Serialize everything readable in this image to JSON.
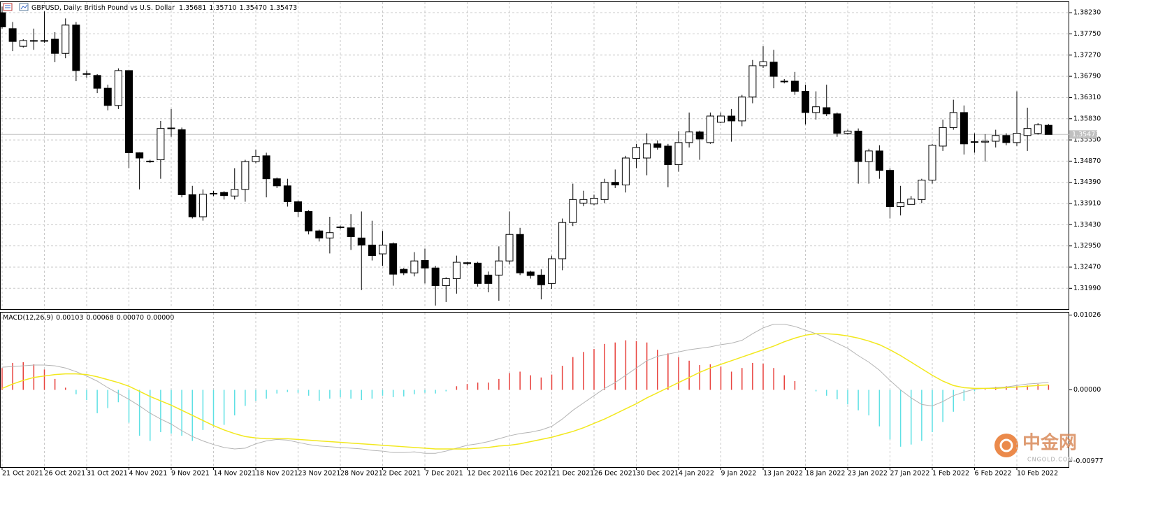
{
  "chart_data": [
    {
      "type": "candlestick",
      "title": "GBPUSD, Daily:  British Pound vs U.S. Dollar",
      "header_values": [
        "1.35681",
        "1.35710",
        "1.35470",
        "1.35473"
      ],
      "categories": [
        "21 Oct 2021",
        null,
        null,
        null,
        "26 Oct 2021",
        null,
        null,
        null,
        "31 Oct 2021",
        null,
        null,
        null,
        "4 Nov 2021",
        null,
        null,
        null,
        "9 Nov 2021",
        null,
        null,
        null,
        "14 Nov 2021",
        null,
        null,
        null,
        "18 Nov 2021",
        null,
        null,
        null,
        "23 Nov 2021",
        null,
        null,
        null,
        "28 Nov 2021",
        null,
        null,
        null,
        "2 Dec 2021",
        null,
        null,
        null,
        "7 Dec 2021",
        null,
        null,
        null,
        "12 Dec 2021",
        null,
        null,
        null,
        "16 Dec 2021",
        null,
        null,
        null,
        "21 Dec 2021",
        null,
        null,
        null,
        "26 Dec 2021",
        null,
        null,
        null,
        "30 Dec 2021",
        null,
        null,
        null,
        "4 Jan 2022",
        null,
        null,
        null,
        "9 Jan 2022",
        null,
        null,
        null,
        "13 Jan 2022",
        null,
        null,
        null,
        "18 Jan 2022",
        null,
        null,
        null,
        "23 Jan 2022",
        null,
        null,
        null,
        "27 Jan 2022",
        null,
        null,
        null,
        "1 Feb 2022",
        null,
        null,
        null,
        "6 Feb 2022",
        null,
        null,
        null,
        "10 Feb 2022",
        null,
        null,
        null
      ],
      "open": [
        1.3823,
        1.3787,
        1.3747,
        1.376,
        1.376,
        1.3763,
        1.3731,
        1.3795,
        1.3685,
        1.3681,
        1.3652,
        1.3613,
        1.3692,
        1.3506,
        1.3486,
        1.349,
        1.3561,
        1.3558,
        1.3411,
        1.3361,
        1.3413,
        1.3416,
        1.3408,
        1.3423,
        1.3486,
        1.3499,
        1.3447,
        1.3431,
        1.3395,
        1.3373,
        1.3329,
        1.3313,
        1.3338,
        1.3336,
        1.3313,
        1.3297,
        1.3277,
        1.33,
        1.3242,
        1.3234,
        1.3262,
        1.3245,
        1.3205,
        1.3221,
        1.3257,
        1.3256,
        1.3229,
        1.3229,
        1.3261,
        1.3321,
        1.3236,
        1.3229,
        1.321,
        1.3266,
        1.3348,
        1.3392,
        1.339,
        1.34,
        1.3439,
        1.3433,
        1.3493,
        1.3494,
        1.3526,
        1.3521,
        1.3479,
        1.3529,
        1.3553,
        1.3529,
        1.3575,
        1.3589,
        1.3578,
        1.3632,
        1.3703,
        1.3711,
        1.3668,
        1.3668,
        1.3645,
        1.3597,
        1.3608,
        1.3594,
        1.355,
        1.3555,
        1.3486,
        1.351,
        1.3466,
        1.3384,
        1.3389,
        1.34,
        1.3444,
        1.3521,
        1.3563,
        1.3597,
        1.3531,
        1.353,
        1.3532,
        1.3545,
        1.3529,
        1.3545,
        1.355,
        1.35681
      ],
      "high": [
        1.3837,
        1.3802,
        1.3763,
        1.3787,
        1.3826,
        1.3779,
        1.381,
        1.3802,
        1.3692,
        1.3684,
        1.366,
        1.3697,
        1.3692,
        1.3507,
        1.349,
        1.3578,
        1.3605,
        1.3563,
        1.3431,
        1.3423,
        1.342,
        1.3419,
        1.3471,
        1.349,
        1.3513,
        1.3506,
        1.345,
        1.3447,
        1.3398,
        1.3376,
        1.3332,
        1.3361,
        1.3341,
        1.3367,
        1.3373,
        1.3352,
        1.3329,
        1.3303,
        1.3245,
        1.3281,
        1.3289,
        1.325,
        1.3224,
        1.3273,
        1.3259,
        1.3259,
        1.3237,
        1.3294,
        1.3373,
        1.3336,
        1.3239,
        1.3242,
        1.3273,
        1.3357,
        1.3436,
        1.342,
        1.3411,
        1.3447,
        1.3468,
        1.3499,
        1.3526,
        1.355,
        1.3534,
        1.3526,
        1.3555,
        1.3597,
        1.3556,
        1.3597,
        1.3597,
        1.3605,
        1.3637,
        1.3716,
        1.3747,
        1.3739,
        1.3673,
        1.3689,
        1.366,
        1.3645,
        1.366,
        1.3597,
        1.3558,
        1.3561,
        1.3515,
        1.3523,
        1.3471,
        1.3431,
        1.3408,
        1.3447,
        1.3526,
        1.3581,
        1.3626,
        1.3613,
        1.355,
        1.3548,
        1.3558,
        1.355,
        1.3645,
        1.3608,
        1.3573,
        1.3571
      ],
      "low": [
        1.3787,
        1.3736,
        1.3744,
        1.3739,
        1.3755,
        1.3711,
        1.372,
        1.3668,
        1.3676,
        1.3641,
        1.3602,
        1.3605,
        1.3471,
        1.3423,
        1.3483,
        1.3447,
        1.3542,
        1.3405,
        1.3357,
        1.3352,
        1.3408,
        1.34,
        1.34,
        1.3395,
        1.3482,
        1.3405,
        1.3426,
        1.3384,
        1.3361,
        1.3321,
        1.3305,
        1.3278,
        1.3333,
        1.3286,
        1.3195,
        1.3262,
        1.325,
        1.3205,
        1.3229,
        1.3226,
        1.321,
        1.316,
        1.3168,
        1.3187,
        1.3251,
        1.3203,
        1.319,
        1.3171,
        1.3253,
        1.3229,
        1.3221,
        1.3174,
        1.3198,
        1.324,
        1.334,
        1.3385,
        1.3387,
        1.3392,
        1.3426,
        1.3416,
        1.3471,
        1.3455,
        1.3513,
        1.3428,
        1.3463,
        1.3518,
        1.349,
        1.3526,
        1.3573,
        1.3531,
        1.3566,
        1.3618,
        1.3698,
        1.3652,
        1.3663,
        1.3637,
        1.357,
        1.3581,
        1.3589,
        1.3542,
        1.3547,
        1.3436,
        1.3436,
        1.3447,
        1.3357,
        1.3364,
        1.3389,
        1.3392,
        1.3436,
        1.351,
        1.3558,
        1.3502,
        1.3506,
        1.3486,
        1.3518,
        1.3523,
        1.3521,
        1.351,
        1.3547,
        1.3547
      ],
      "close": [
        1.3791,
        1.3758,
        1.376,
        1.3759,
        1.3759,
        1.3731,
        1.3795,
        1.3692,
        1.3684,
        1.3652,
        1.3613,
        1.3692,
        1.3506,
        1.3494,
        1.3487,
        1.3561,
        1.3562,
        1.3411,
        1.3361,
        1.3412,
        1.3414,
        1.3409,
        1.3423,
        1.3486,
        1.3498,
        1.3447,
        1.3431,
        1.3395,
        1.3373,
        1.3329,
        1.3313,
        1.3325,
        1.3337,
        1.3316,
        1.3297,
        1.3273,
        1.3297,
        1.3231,
        1.3234,
        1.3261,
        1.3245,
        1.3205,
        1.3221,
        1.3258,
        1.3255,
        1.321,
        1.321,
        1.3261,
        1.3321,
        1.3234,
        1.3228,
        1.3207,
        1.3266,
        1.3348,
        1.34,
        1.34,
        1.3403,
        1.3439,
        1.3433,
        1.3494,
        1.3518,
        1.3526,
        1.3518,
        1.3479,
        1.3529,
        1.3553,
        1.3537,
        1.3589,
        1.3589,
        1.3578,
        1.3632,
        1.3703,
        1.3712,
        1.3679,
        1.3667,
        1.3645,
        1.3597,
        1.361,
        1.3594,
        1.355,
        1.3555,
        1.3486,
        1.351,
        1.3466,
        1.3384,
        1.3393,
        1.3401,
        1.3444,
        1.3523,
        1.3563,
        1.3597,
        1.3526,
        1.353,
        1.3532,
        1.3545,
        1.3529,
        1.355,
        1.3561,
        1.3569,
        1.35473
      ],
      "up_color": "#ffffff",
      "down_color": "#000000",
      "ylim": [
        1.3152,
        1.3847
      ],
      "yticks": [
        {
          "value": 1.3823,
          "label": "1.38230"
        },
        {
          "value": 1.3775,
          "label": "1.37750"
        },
        {
          "value": 1.3727,
          "label": "1.37270"
        },
        {
          "value": 1.3679,
          "label": "1.36790"
        },
        {
          "value": 1.3631,
          "label": "1.36310"
        },
        {
          "value": 1.3583,
          "label": "1.35830"
        },
        {
          "value": 1.3535,
          "label": "1.35350"
        },
        {
          "value": 1.3487,
          "label": "1.34870"
        },
        {
          "value": 1.3439,
          "label": "1.34390"
        },
        {
          "value": 1.3391,
          "label": "1.33910"
        },
        {
          "value": 1.3343,
          "label": "1.33430"
        },
        {
          "value": 1.3295,
          "label": "1.32950"
        },
        {
          "value": 1.3247,
          "label": "1.32470"
        },
        {
          "value": 1.3199,
          "label": "1.31990"
        }
      ],
      "last_price": {
        "value": 1.35473,
        "label": "1.35473"
      },
      "grid": true
    },
    {
      "type": "macd",
      "title": "MACD(12,26,9)",
      "header_values": [
        "0.00103",
        "0.00068",
        "0.00070",
        "0.00000"
      ],
      "series": [
        {
          "color": [
            "#e8413c",
            "#5ee0e4"
          ],
          "values": [
            0.003,
            0.0037,
            0.0038,
            0.0035,
            0.0028,
            0.0015,
            0.0003,
            -0.0006,
            -0.0014,
            -0.0032,
            -0.0025,
            -0.0017,
            -0.0045,
            -0.0063,
            -0.007,
            -0.0058,
            -0.006,
            -0.0063,
            -0.007,
            -0.0055,
            -0.005,
            -0.0048,
            -0.0035,
            -0.0022,
            -0.0015,
            -0.0012,
            -0.0005,
            -0.0003,
            -0.0004,
            -0.0008,
            -0.0015,
            -0.0012,
            -0.001,
            -0.0012,
            -0.0014,
            -0.0012,
            -0.0008,
            -0.001,
            -0.0009,
            -0.0006,
            -0.0004,
            -0.0005,
            -0.0002,
            0.0005,
            0.0008,
            0.001,
            0.001,
            0.0015,
            0.0023,
            0.0025,
            0.002,
            0.0017,
            0.0021,
            0.0033,
            0.0045,
            0.0052,
            0.0056,
            0.0063,
            0.0065,
            0.0068,
            0.0067,
            0.0065,
            0.0055,
            0.005,
            0.0045,
            0.004,
            0.0034,
            0.0035,
            0.0032,
            0.0025,
            0.003,
            0.0037,
            0.0036,
            0.003,
            0.002,
            0.0012,
            0.0,
            -0.0002,
            -0.0008,
            -0.0013,
            -0.002,
            -0.0028,
            -0.0035,
            -0.005,
            -0.0068,
            -0.0078,
            -0.0075,
            -0.007,
            -0.0058,
            -0.0044,
            -0.003,
            -0.0015,
            -0.0002,
            0.0001,
            0.0004,
            0.0005,
            0.0005,
            0.0006,
            0.0008,
            0.0007
          ]
        },
        {
          "color": "#b4b4b4",
          "values": [
            0.0031,
            0.0032,
            0.0033,
            0.0034,
            0.0034,
            0.0033,
            0.003,
            0.0025,
            0.0019,
            0.0012,
            0.0003,
            -0.0005,
            -0.0013,
            -0.0022,
            -0.0032,
            -0.004,
            -0.0047,
            -0.0056,
            -0.0064,
            -0.007,
            -0.0075,
            -0.0079,
            -0.0081,
            -0.008,
            -0.0074,
            -0.007,
            -0.0068,
            -0.0069,
            -0.0072,
            -0.0075,
            -0.0077,
            -0.0078,
            -0.0079,
            -0.008,
            -0.0081,
            -0.0083,
            -0.0084,
            -0.0086,
            -0.0086,
            -0.0085,
            -0.0087,
            -0.0087,
            -0.0084,
            -0.008,
            -0.0076,
            -0.0074,
            -0.0071,
            -0.0067,
            -0.0063,
            -0.006,
            -0.0058,
            -0.0055,
            -0.005,
            -0.004,
            -0.0028,
            -0.0018,
            -0.0008,
            0.0002,
            0.001,
            0.002,
            0.003,
            0.004,
            0.0046,
            0.0049,
            0.0052,
            0.0055,
            0.0057,
            0.0059,
            0.0062,
            0.0064,
            0.0068,
            0.0077,
            0.0085,
            0.009,
            0.009,
            0.0087,
            0.0082,
            0.0077,
            0.0071,
            0.0064,
            0.0057,
            0.0047,
            0.0038,
            0.0027,
            0.0013,
            0.0,
            -0.0011,
            -0.002,
            -0.0022,
            -0.0016,
            -0.0008,
            -0.0003,
            0.0001,
            0.0002,
            0.0003,
            0.0004,
            0.0006,
            0.0008,
            0.0009,
            0.00103
          ]
        },
        {
          "color": "#f2e81e",
          "values": [
            0.0002,
            0.0008,
            0.0013,
            0.0017,
            0.0019,
            0.0021,
            0.0022,
            0.0022,
            0.0021,
            0.0018,
            0.0014,
            0.001,
            0.0005,
            -0.0002,
            -0.0009,
            -0.0015,
            -0.0021,
            -0.0028,
            -0.0035,
            -0.0042,
            -0.0049,
            -0.0055,
            -0.006,
            -0.0064,
            -0.0066,
            -0.0067,
            -0.0067,
            -0.0067,
            -0.0068,
            -0.0069,
            -0.007,
            -0.0071,
            -0.0072,
            -0.0073,
            -0.0074,
            -0.0075,
            -0.0076,
            -0.0077,
            -0.0078,
            -0.0079,
            -0.008,
            -0.0081,
            -0.0081,
            -0.0081,
            -0.0081,
            -0.008,
            -0.0079,
            -0.0077,
            -0.0076,
            -0.0074,
            -0.0071,
            -0.0068,
            -0.0065,
            -0.0061,
            -0.0057,
            -0.0052,
            -0.0046,
            -0.004,
            -0.0033,
            -0.0026,
            -0.0019,
            -0.0011,
            -0.0004,
            0.0003,
            0.001,
            0.0017,
            0.0024,
            0.003,
            0.0035,
            0.004,
            0.0045,
            0.005,
            0.0055,
            0.006,
            0.0066,
            0.0071,
            0.0075,
            0.0077,
            0.0077,
            0.0076,
            0.0074,
            0.0071,
            0.0067,
            0.0062,
            0.0055,
            0.0047,
            0.0038,
            0.0029,
            0.002,
            0.0012,
            0.0006,
            0.0003,
            0.0002,
            0.0002,
            0.0002,
            0.0003,
            0.0004,
            0.0005,
            0.0006,
            0.00068
          ]
        }
      ],
      "ylim": [
        -0.0106,
        0.0106
      ],
      "yticks": [
        {
          "value": 0.01026,
          "label": "0.01026"
        },
        {
          "value": 0,
          "label": "0.00000"
        },
        {
          "value": -0.00977,
          "label": "-0.00977"
        }
      ]
    }
  ],
  "watermark": {
    "name": "中金网",
    "site": "CNGOLD.COM"
  }
}
